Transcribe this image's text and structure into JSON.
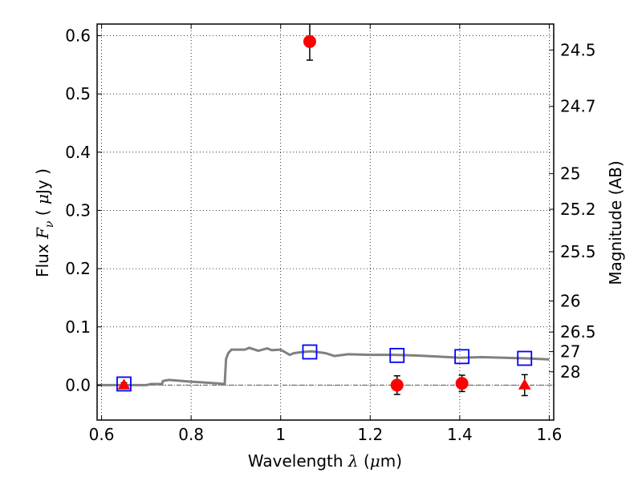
{
  "chart_data": {
    "type": "scatter",
    "xlabel": {
      "prefix": "Wavelength",
      "symbol": "λ",
      "unit_open": "(",
      "unit_mu": "μ",
      "unit_rest": "m)"
    },
    "ylabel": {
      "prefix": "Flux",
      "symbol_main": "F",
      "symbol_sub": "ν",
      "unit_open": "(",
      "unit_mu": "μ",
      "unit_rest": "Jy )"
    },
    "y2label": "Magnitude (AB)",
    "xlim": [
      0.59,
      1.61
    ],
    "ylim": [
      -0.06,
      0.62
    ],
    "x_ticks": [
      {
        "value": 0.6,
        "label": "0.6"
      },
      {
        "value": 0.8,
        "label": "0.8"
      },
      {
        "value": 1.0,
        "label": "1"
      },
      {
        "value": 1.2,
        "label": "1.2"
      },
      {
        "value": 1.4,
        "label": "1.4"
      },
      {
        "value": 1.6,
        "label": "1.6"
      }
    ],
    "y_ticks": [
      {
        "value": 0.0,
        "label": "0.0"
      },
      {
        "value": 0.1,
        "label": "0.1"
      },
      {
        "value": 0.2,
        "label": "0.2"
      },
      {
        "value": 0.3,
        "label": "0.3"
      },
      {
        "value": 0.4,
        "label": "0.4"
      },
      {
        "value": 0.5,
        "label": "0.5"
      },
      {
        "value": 0.6,
        "label": "0.6"
      }
    ],
    "mag_ticks": [
      {
        "value": 24.5,
        "label": "24.5"
      },
      {
        "value": 24.7,
        "label": "24.7"
      },
      {
        "value": 25.0,
        "label": "25"
      },
      {
        "value": 25.2,
        "label": "25.2"
      },
      {
        "value": 25.5,
        "label": "25.5"
      },
      {
        "value": 26.0,
        "label": "26"
      },
      {
        "value": 26.5,
        "label": "26.5"
      },
      {
        "value": 27.0,
        "label": "27"
      },
      {
        "value": 28.0,
        "label": "28"
      }
    ],
    "grid": true,
    "colors": {
      "model": "#808080",
      "observed": "#ff0000",
      "model_band": "#0000ff",
      "errorbar": "#000000"
    },
    "model_spectrum": {
      "x": [
        0.59,
        0.7,
        0.71,
        0.735,
        0.737,
        0.75,
        0.8,
        0.86,
        0.875,
        0.878,
        0.883,
        0.89,
        0.92,
        0.93,
        0.95,
        0.97,
        0.98,
        1.0,
        1.02,
        1.03,
        1.05,
        1.07,
        1.1,
        1.12,
        1.15,
        1.2,
        1.25,
        1.3,
        1.35,
        1.4,
        1.45,
        1.5,
        1.55,
        1.6
      ],
      "y": [
        0.0,
        0.0,
        0.002,
        0.002,
        0.007,
        0.009,
        0.006,
        0.003,
        0.002,
        0.045,
        0.055,
        0.061,
        0.061,
        0.064,
        0.059,
        0.063,
        0.06,
        0.061,
        0.052,
        0.055,
        0.057,
        0.058,
        0.055,
        0.05,
        0.053,
        0.052,
        0.052,
        0.051,
        0.049,
        0.047,
        0.048,
        0.047,
        0.046,
        0.044
      ]
    },
    "series": [
      {
        "marker": "circle",
        "points": [
          {
            "x": 1.065,
            "y": 0.59,
            "err": 0.032
          },
          {
            "x": 1.26,
            "y": 0.0,
            "err": 0.016
          },
          {
            "x": 1.405,
            "y": 0.003,
            "err": 0.014
          }
        ]
      },
      {
        "marker": "triangle",
        "points": [
          {
            "x": 0.65,
            "y": 0.0,
            "err": 0.004
          },
          {
            "x": 1.545,
            "y": 0.0,
            "err": 0.018
          }
        ]
      },
      {
        "marker": "square",
        "points": [
          {
            "x": 0.65,
            "y": 0.002
          },
          {
            "x": 1.065,
            "y": 0.057
          },
          {
            "x": 1.26,
            "y": 0.051
          },
          {
            "x": 1.405,
            "y": 0.049
          },
          {
            "x": 1.545,
            "y": 0.046
          }
        ]
      }
    ]
  }
}
